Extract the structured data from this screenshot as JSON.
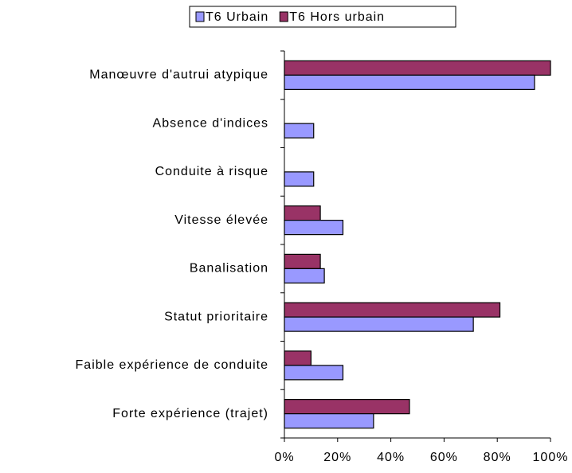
{
  "chart_data": {
    "type": "bar",
    "orientation": "horizontal",
    "categories": [
      "Manœuvre d'autrui atypique",
      "Absence d'indices",
      "Conduite à risque",
      "Vitesse élevée",
      "Banalisation",
      "Statut prioritaire",
      "Faible expérience de conduite",
      "Forte expérience (trajet)"
    ],
    "series": [
      {
        "name": "T6 Urbain",
        "color": "#9999ff",
        "values": [
          94,
          11,
          11,
          22,
          15,
          71,
          22,
          33.5
        ]
      },
      {
        "name": "T6 Hors urbain",
        "color": "#993366",
        "values": [
          100,
          0,
          0,
          13.5,
          13.5,
          81,
          10,
          47
        ]
      }
    ],
    "xlim": [
      0,
      100
    ],
    "xticks": [
      {
        "value": 0,
        "label": "0%"
      },
      {
        "value": 20,
        "label": "20%"
      },
      {
        "value": 40,
        "label": "40%"
      },
      {
        "value": 60,
        "label": "60%"
      },
      {
        "value": 80,
        "label": "80%"
      },
      {
        "value": 100,
        "label": "100%"
      }
    ],
    "legend": "top"
  }
}
